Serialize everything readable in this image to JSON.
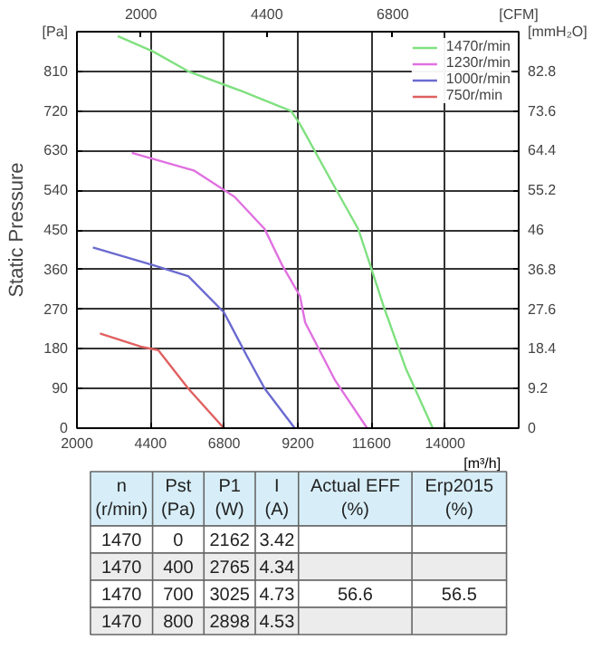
{
  "chart_data": {
    "type": "line",
    "ylabel": "Static Pressure",
    "xlabel": "[m³/h]",
    "x2label": "[CFM]",
    "xlim": [
      2000,
      16400
    ],
    "xticks": [
      2000,
      4400,
      6800,
      9200,
      11600,
      14000
    ],
    "x2lim": [
      780,
      9200
    ],
    "x2ticks": [
      2000,
      4400,
      6800
    ],
    "ylim": [
      0,
      900
    ],
    "yticks": [
      0,
      90,
      180,
      270,
      360,
      450,
      540,
      630,
      720,
      810,
      {
        "value": 900,
        "label": "[Pa]"
      }
    ],
    "y2lim": [
      0,
      92
    ],
    "y2ticks": [
      0,
      9.2,
      18.4,
      27.6,
      36.8,
      46,
      55.2,
      64.4,
      73.6,
      82.8,
      {
        "value": 92,
        "label": "[mmH₂O]"
      }
    ],
    "grid": true,
    "legend": "top right",
    "marker": "none",
    "line_style": "solid",
    "series": [
      {
        "name": "1470r/min",
        "color": "#80e080",
        "x": [
          3330,
          4480,
          5630,
          7370,
          8980,
          9270,
          10420,
          11170,
          11580,
          11980,
          12730,
          13600
        ],
        "values": [
          890,
          855,
          810,
          765,
          720,
          690,
          545,
          452,
          366,
          280,
          134,
          0
        ]
      },
      {
        "name": "1230r/min",
        "color": "#e070e0",
        "x": [
          3790,
          5810,
          7140,
          8120,
          8690,
          9270,
          9440,
          10420,
          11460
        ],
        "values": [
          625,
          585,
          525,
          452,
          370,
          300,
          240,
          108,
          0
        ]
      },
      {
        "name": "1000r/min",
        "color": "#6a6ad0",
        "x": [
          2520,
          4480,
          5630,
          6790,
          7540,
          8120,
          9100
        ],
        "values": [
          410,
          370,
          345,
          263,
          164,
          90,
          0
        ]
      },
      {
        "name": "750r/min",
        "color": "#e06060",
        "x": [
          2750,
          4080,
          4650,
          5630,
          6790
        ],
        "values": [
          215,
          185,
          177,
          90,
          0
        ]
      }
    ],
    "annotations": [
      "n\n(r/min)",
      "Pst\n(Pa)",
      "P1\n(W)",
      "I\n(A)",
      "Actual EFF\n(%)",
      "Erp2015\n(%)",
      "1470",
      "0",
      "2162",
      "3.42",
      "1470",
      "400",
      "2765",
      "4.34",
      "1470",
      "700",
      "3025",
      "4.73",
      "1470",
      "800",
      "2898",
      "4.53",
      "56.6",
      "56.5"
    ]
  }
}
